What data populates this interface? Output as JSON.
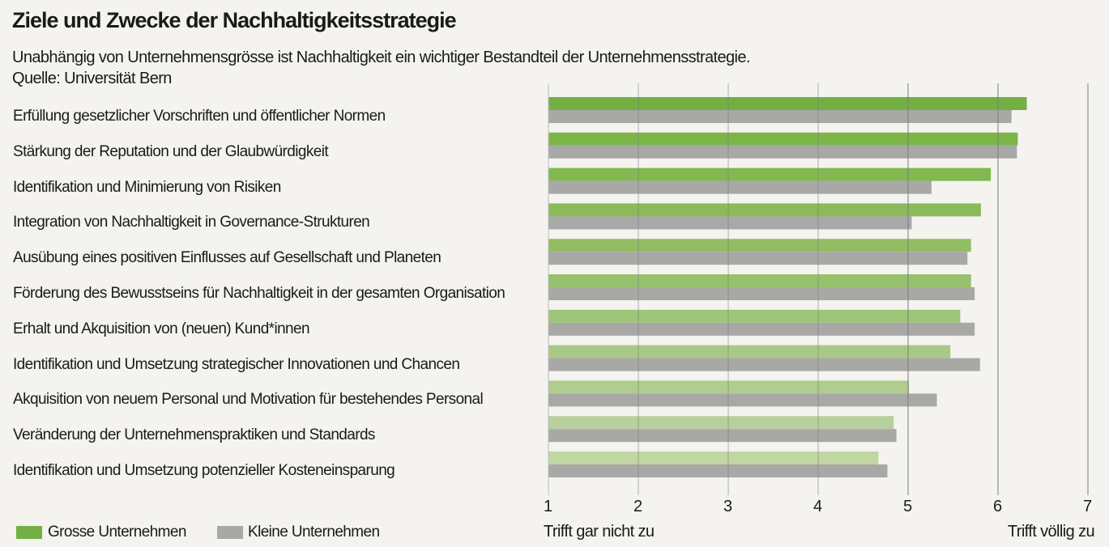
{
  "chart_data": {
    "type": "bar",
    "orientation": "horizontal",
    "title": "Ziele und Zwecke der Nachhaltigkeitsstrategie",
    "subtitle": "Unabhängig von Unternehmensgrösse ist Nachhaltigkeit ein wichtiger Bestandteil der Unternehmensstrategie.",
    "source": "Quelle: Universität Bern",
    "categories": [
      "Erfüllung gesetzlicher Vorschriften und öffentlicher Normen",
      "Stärkung der Reputation und der Glaubwürdigkeit",
      "Identifikation und Minimierung von Risiken",
      "Integration von Nachhaltigkeit in Governance-Strukturen",
      "Ausübung eines positiven Einflusses auf Gesellschaft und Planeten",
      "Förderung des Bewusstseins für Nachhaltigkeit in der gesamten Organisation",
      "Erhalt und Akquisition von (neuen) Kund*innen",
      "Identifikation und Umsetzung strategischer Innovationen und Chancen",
      "Akquisition von neuem Personal und Motivation für bestehendes Personal",
      "Veränderung der Unternehmenspraktiken und Standards",
      "Identifikation und Umsetzung potenzieller Kosteneinsparung"
    ],
    "series": [
      {
        "name": "Grosse Unternehmen",
        "color": "#72b043",
        "shades": [
          "#72b043",
          "#7cb548",
          "#82b850",
          "#8aba5a",
          "#92bd63",
          "#97c16c",
          "#9fc579",
          "#a8c986",
          "#b0cc8e",
          "#b8d09b",
          "#c0d6a3"
        ],
        "values": [
          6.32,
          6.22,
          5.92,
          5.81,
          5.7,
          5.7,
          5.58,
          5.47,
          5.01,
          4.84,
          4.67
        ]
      },
      {
        "name": "Kleine Unternehmen",
        "color": "#a8a8a7",
        "values": [
          6.15,
          6.21,
          5.26,
          5.04,
          5.66,
          5.74,
          5.74,
          5.8,
          5.32,
          4.87,
          4.77
        ]
      }
    ],
    "xlim": [
      1,
      7
    ],
    "xticks": [
      "1",
      "2",
      "3",
      "4",
      "5",
      "6",
      "7"
    ],
    "xlabel_left": "Trifft gar nicht zu",
    "xlabel_right": "Trifft völlig zu",
    "grid": true,
    "legend_placement": "bottom-left",
    "background": "#f4f3ef"
  }
}
